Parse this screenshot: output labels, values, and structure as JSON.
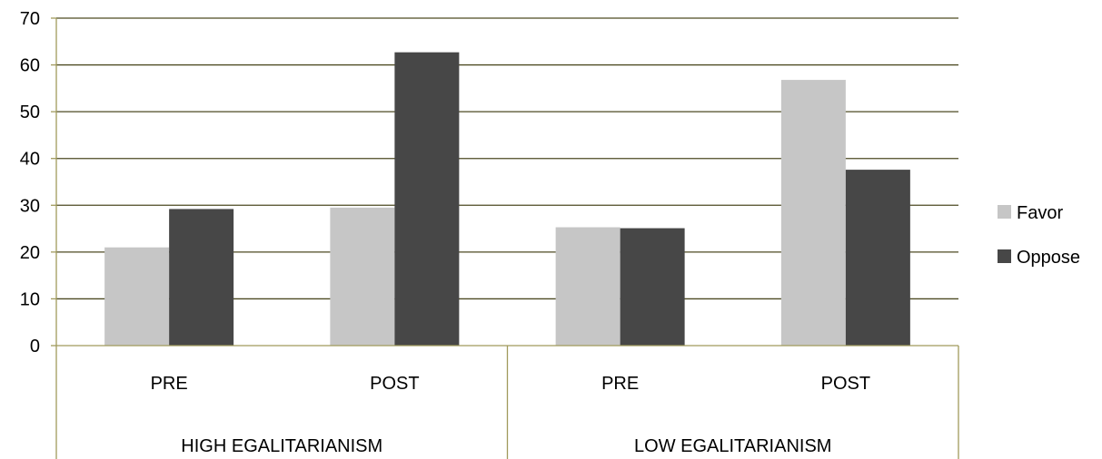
{
  "chart_data": {
    "type": "bar",
    "title": "",
    "xlabel": "",
    "ylabel": "",
    "ylim": [
      0,
      70
    ],
    "yticks": [
      0,
      10,
      20,
      30,
      40,
      50,
      60,
      70
    ],
    "grid": true,
    "legend_position": "right",
    "categories": [
      "PRE",
      "POST",
      "PRE",
      "POST"
    ],
    "groups": [
      {
        "label": "HIGH EGALITARIANISM",
        "categories": [
          "PRE",
          "POST"
        ]
      },
      {
        "label": "LOW EGALITARIANISM",
        "categories": [
          "PRE",
          "POST"
        ]
      }
    ],
    "series": [
      {
        "name": "Favor",
        "color": "#c6c6c6",
        "values": [
          21,
          29.5,
          25.3,
          56.8
        ]
      },
      {
        "name": "Oppose",
        "color": "#474747",
        "values": [
          29.2,
          62.7,
          25.1,
          37.6
        ]
      }
    ]
  },
  "colors": {
    "gridline": "#4d4a22",
    "axis": "#a09a5c",
    "text": "#000000"
  }
}
